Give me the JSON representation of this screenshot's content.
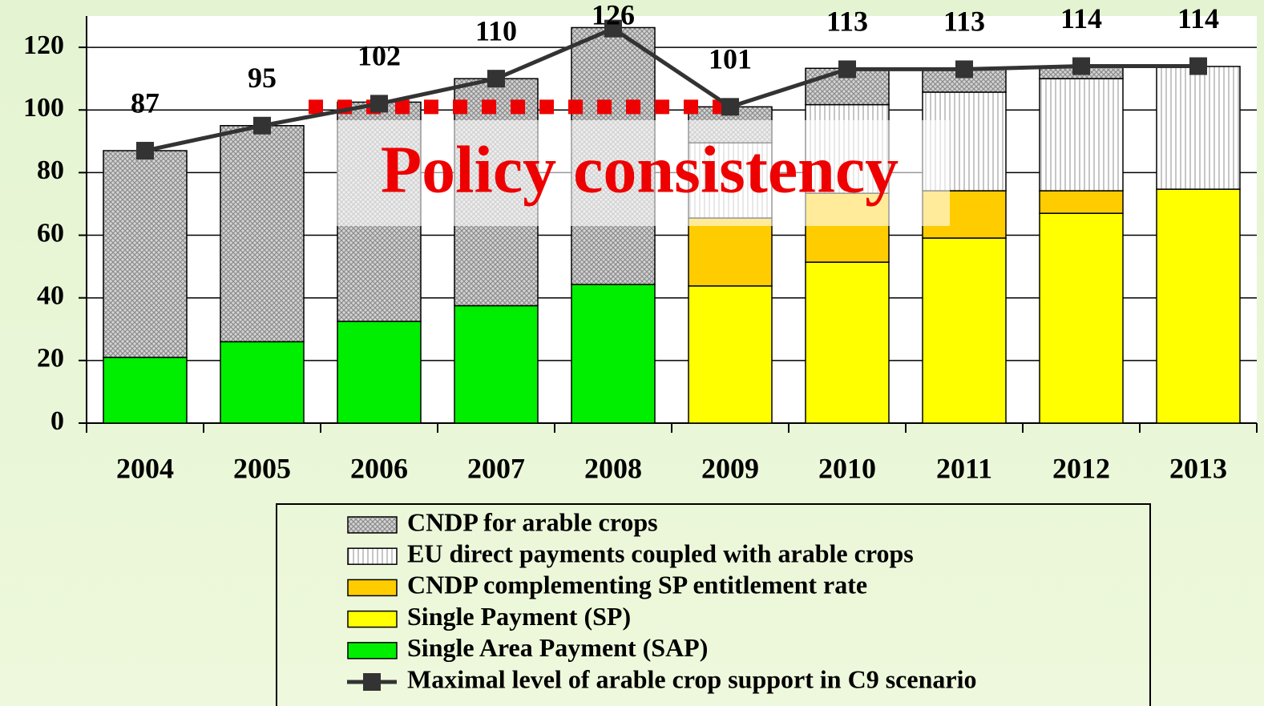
{
  "chart_data": {
    "type": "bar",
    "stacked": true,
    "categories": [
      "2004",
      "2005",
      "2006",
      "2007",
      "2008",
      "2009",
      "2010",
      "2011",
      "2012",
      "2013"
    ],
    "series": [
      {
        "name": "CNDP for arable crops",
        "color": "#8c8c8c",
        "pattern": "crosshatch",
        "values": [
          66,
          69,
          70,
          72.5,
          82,
          11.5,
          11.6,
          7.7,
          3.9,
          0
        ]
      },
      {
        "name": "EU direct payments coupled with arable crops",
        "color": "#8c8c8c",
        "pattern": "vertical",
        "values": [
          0,
          0,
          0,
          0,
          0,
          24,
          28.3,
          31.5,
          35.8,
          39.2
        ]
      },
      {
        "name": "CNDP complementing SP entitlement rate",
        "color": "#ffcc00",
        "values": [
          0,
          0,
          0,
          0,
          0,
          21.7,
          22,
          15.1,
          7.2,
          0
        ]
      },
      {
        "name": "Single Payment (SP)",
        "color": "#ffff00",
        "values": [
          0,
          0,
          0,
          0,
          0,
          43.8,
          51.4,
          59.1,
          67,
          74.7
        ]
      },
      {
        "name": "Single Area Payment (SAP)",
        "color": "#00ee00",
        "values": [
          21,
          26,
          32.5,
          37.5,
          44.3,
          0,
          0,
          0,
          0,
          0
        ]
      },
      {
        "name": "Maximal level of arable crop support in C9 scenario",
        "type": "line",
        "color": "#333333",
        "values": [
          87,
          95,
          102,
          110,
          126,
          101,
          113,
          113,
          114,
          114
        ]
      }
    ],
    "ylim": [
      0,
      130
    ],
    "yticks": [
      0,
      20,
      40,
      60,
      80,
      100,
      120
    ],
    "grid": true,
    "annotation": {
      "text": "Policy consistency",
      "color": "#ee0000",
      "y": 101,
      "x_start": "2006",
      "x_end": "2009"
    }
  }
}
